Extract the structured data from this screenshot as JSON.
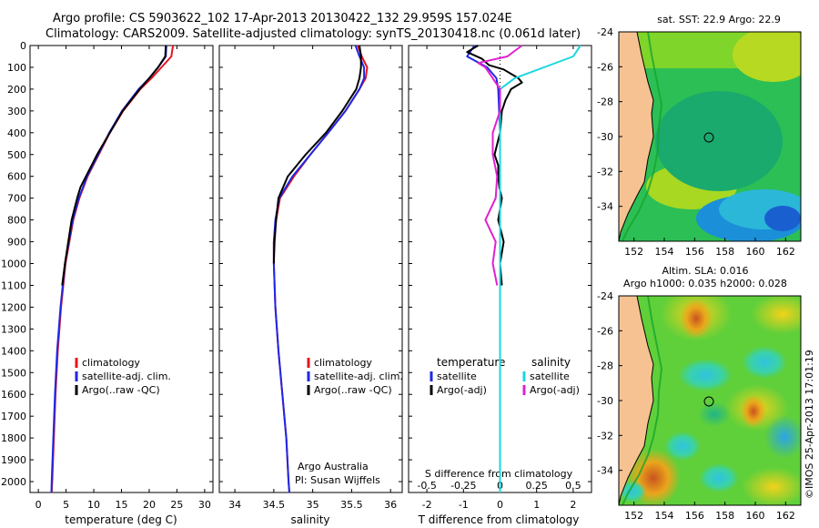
{
  "header": {
    "line1": "Argo profile: CS 5903622_102 17-Apr-2013 20130422_132 29.959S 157.024E",
    "line2": "Climatology: CARS2009. Satellite-adjusted climatology: synTS_20130418.nc (0.061d later)"
  },
  "colors": {
    "clim": "#e8141e",
    "sat": "#1e28e6",
    "argo": "#000000",
    "cyan": "#18d8e0",
    "magenta": "#e020d0",
    "land": "#f6c292",
    "coast": "#16a52a"
  },
  "chart_data": [
    {
      "id": "temperature",
      "type": "line",
      "xlabel": "temperature (deg C)",
      "ylim": [
        2050,
        0
      ],
      "xlim": [
        -1.5,
        31.5
      ],
      "xticks": [
        0,
        5,
        10,
        15,
        20,
        25,
        30
      ],
      "yticks": [
        0,
        100,
        200,
        300,
        400,
        500,
        600,
        700,
        800,
        900,
        1000,
        1100,
        1200,
        1300,
        1400,
        1500,
        1600,
        1700,
        1800,
        1900,
        2000
      ],
      "legend": [
        "climatology",
        "satellite-adj. clim.",
        "Argo(..raw -QC)"
      ],
      "series": [
        {
          "name": "climatology",
          "color_key": "clim",
          "depth": [
            0,
            50,
            100,
            150,
            200,
            300,
            400,
            500,
            600,
            700,
            800,
            1000,
            1200,
            1400,
            1600,
            1800,
            2000,
            2050
          ],
          "values": [
            24.3,
            24.0,
            22.2,
            20.4,
            18.4,
            15.3,
            12.9,
            10.9,
            8.9,
            7.4,
            6.3,
            4.9,
            4.1,
            3.5,
            3.1,
            2.8,
            2.5,
            2.4
          ]
        },
        {
          "name": "satellite-adj. clim.",
          "color_key": "sat",
          "depth": [
            0,
            50,
            100,
            150,
            200,
            300,
            400,
            500,
            600,
            700,
            800,
            1000,
            1200,
            1400,
            1600,
            1800,
            2000,
            2050
          ],
          "values": [
            23.1,
            23.0,
            21.6,
            20.0,
            18.1,
            15.1,
            12.8,
            10.8,
            8.8,
            7.3,
            6.2,
            4.8,
            4.0,
            3.4,
            3.0,
            2.7,
            2.4,
            2.35
          ]
        },
        {
          "name": "Argo(..raw -QC)",
          "color_key": "argo",
          "depth": [
            0,
            50,
            100,
            150,
            200,
            300,
            400,
            500,
            600,
            650,
            700,
            800,
            900,
            1000,
            1100
          ],
          "values": [
            23.0,
            22.9,
            21.6,
            20.0,
            18.3,
            15.2,
            12.9,
            10.6,
            8.6,
            7.6,
            7.0,
            6.0,
            5.4,
            4.8,
            4.3
          ]
        }
      ]
    },
    {
      "id": "salinity",
      "type": "line",
      "xlabel": "salinity",
      "ylim": [
        2050,
        0
      ],
      "xlim": [
        33.8,
        36.15
      ],
      "xticks": [
        34,
        34.5,
        35,
        35.5,
        36
      ],
      "xticklabels": [
        "34",
        "34.5",
        "35",
        "35.5",
        "36"
      ],
      "legend": [
        "climatology",
        "satellite-adj. clim.",
        "Argo(..raw -QC)"
      ],
      "annotation": [
        "Argo Australia",
        "PI: Susan Wijffels"
      ],
      "series": [
        {
          "name": "climatology",
          "color_key": "clim",
          "depth": [
            0,
            50,
            100,
            150,
            200,
            300,
            400,
            500,
            600,
            700,
            800,
            900,
            1000,
            1200,
            1400,
            1600,
            1800,
            2000,
            2050
          ],
          "values": [
            35.58,
            35.63,
            35.7,
            35.68,
            35.6,
            35.42,
            35.2,
            34.97,
            34.76,
            34.58,
            34.53,
            34.5,
            34.5,
            34.52,
            34.56,
            34.61,
            34.66,
            34.69,
            34.7
          ]
        },
        {
          "name": "satellite-adj. clim.",
          "color_key": "sat",
          "depth": [
            0,
            50,
            100,
            150,
            200,
            300,
            400,
            500,
            600,
            700,
            800,
            900,
            1000,
            1200,
            1400,
            1600,
            1800,
            2000,
            2050
          ],
          "values": [
            35.55,
            35.6,
            35.66,
            35.66,
            35.6,
            35.42,
            35.2,
            34.97,
            34.74,
            34.57,
            34.52,
            34.5,
            34.5,
            34.52,
            34.56,
            34.61,
            34.66,
            34.69,
            34.7
          ]
        },
        {
          "name": "Argo(..raw -QC)",
          "color_key": "argo",
          "depth": [
            0,
            50,
            100,
            150,
            200,
            300,
            400,
            500,
            600,
            700,
            800,
            900,
            1000
          ],
          "values": [
            35.6,
            35.62,
            35.62,
            35.6,
            35.56,
            35.38,
            35.17,
            34.91,
            34.68,
            34.56,
            34.53,
            34.51,
            34.5
          ]
        }
      ]
    },
    {
      "id": "difference",
      "type": "line",
      "xlabel": "T difference from climatology",
      "toplabel": "S difference from climatology",
      "ylim": [
        2050,
        0
      ],
      "xlim": [
        -2.5,
        2.5
      ],
      "xticks": [
        -2,
        -1,
        0,
        1,
        2
      ],
      "sticks": [
        -0.5,
        -0.25,
        0,
        0.25,
        0.5
      ],
      "sticklabels": [
        "-0.5",
        "-0.25",
        "0",
        "0.25",
        "0.5"
      ],
      "legend_titles": [
        "temperature",
        "salinity"
      ],
      "legend": [
        "satellite",
        "Argo(-adj)",
        "satellite",
        "Argo(-adj)"
      ],
      "series": [
        {
          "name": "T satellite",
          "color_key": "sat",
          "depth": [
            0,
            50,
            100,
            150,
            200,
            400,
            600,
            800,
            1000,
            1500,
            2000,
            2050
          ],
          "values": [
            -0.7,
            -0.9,
            -0.35,
            -0.1,
            -0.05,
            0,
            0,
            0,
            0,
            0,
            0,
            0
          ]
        },
        {
          "name": "T Argo(-adj)",
          "color_key": "argo",
          "depth": [
            0,
            30,
            60,
            90,
            110,
            130,
            150,
            170,
            200,
            250,
            300,
            400,
            500,
            550,
            600,
            650,
            700,
            800,
            900,
            1000,
            1100
          ],
          "values": [
            -0.6,
            -0.9,
            -0.5,
            -0.3,
            0.1,
            0.3,
            0.5,
            0.6,
            0.3,
            0.15,
            0.05,
            0,
            -0.15,
            -0.05,
            -0.05,
            -0.02,
            0.05,
            -0.05,
            0.1,
            0,
            0.05
          ]
        },
        {
          "name": "S satellite",
          "color_key": "cyan",
          "depth": [
            0,
            50,
            100,
            150,
            200,
            300,
            400,
            500,
            600,
            800,
            1000,
            1500,
            2000,
            2050
          ],
          "values": [
            0.55,
            0.5,
            0.3,
            0.1,
            0,
            0,
            0,
            0,
            0,
            0,
            0,
            0,
            0,
            0
          ]
        },
        {
          "name": "S Argo(-adj)",
          "color_key": "magenta",
          "depth": [
            0,
            50,
            80,
            100,
            150,
            200,
            300,
            400,
            500,
            600,
            700,
            800,
            900,
            1000,
            1100
          ],
          "values": [
            0.15,
            0.05,
            -0.15,
            -0.1,
            -0.05,
            0,
            0,
            -0.05,
            -0.05,
            -0.02,
            -0.03,
            -0.1,
            -0.03,
            -0.05,
            -0.02
          ]
        }
      ]
    },
    {
      "id": "sst_map",
      "type": "heatmap",
      "title": "sat. SST: 22.9  Argo: 22.9",
      "xlim": [
        151,
        163
      ],
      "ylim": [
        -36,
        -24
      ],
      "xticks": [
        152,
        154,
        156,
        158,
        160,
        162
      ],
      "yticks": [
        -24,
        -26,
        -28,
        -30,
        -32,
        -34
      ],
      "marker": {
        "lon": 157.0,
        "lat": -30.0
      }
    },
    {
      "id": "sla_map",
      "type": "heatmap",
      "title": [
        "Altim. SLA: 0.016",
        "Argo h1000: 0.035 h2000: 0.028"
      ],
      "xlim": [
        151,
        163
      ],
      "ylim": [
        -36,
        -24
      ],
      "xticks": [
        152,
        154,
        156,
        158,
        160,
        162
      ],
      "yticks": [
        -24,
        -26,
        -28,
        -30,
        -32,
        -34
      ],
      "marker": {
        "lon": 157.0,
        "lat": -30.0
      }
    }
  ],
  "footer": {
    "stamp": "©IMOS 25-Apr-2013 17:01:19"
  }
}
